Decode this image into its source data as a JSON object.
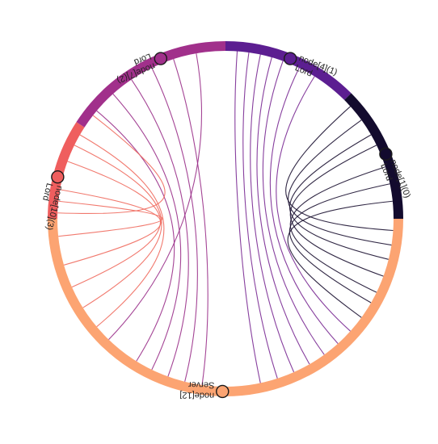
{
  "diagram": {
    "type": "circular-hierarchical-edge-bundling",
    "segments": [
      {
        "id": "violet",
        "start_angle": 90,
        "end_angle": 45,
        "color": "#5c1e91"
      },
      {
        "id": "dark",
        "start_angle": 45,
        "end_angle": 0,
        "color": "#130b2e"
      },
      {
        "id": "peach",
        "start_angle": 0,
        "end_angle": -180,
        "color": "#fca472"
      },
      {
        "id": "coral",
        "start_angle": 180,
        "end_angle": 147,
        "color": "#ef5e5e"
      },
      {
        "id": "magenta",
        "start_angle": 147,
        "end_angle": 90,
        "color": "#a1308b"
      }
    ],
    "nodes": [
      {
        "id": "n41",
        "angle": 68,
        "fill": "#5c1e91",
        "lines": [
          "node[4](1)",
          "Lord"
        ],
        "label_side": "outer-cw"
      },
      {
        "id": "n10",
        "angle": 22,
        "fill": "#130b2e",
        "lines": [
          "node[1](0)",
          "Lord"
        ],
        "label_side": "inner-cw"
      },
      {
        "id": "n12",
        "angle": -91,
        "fill": "#fca472",
        "lines": [
          "node[12]",
          "Server"
        ],
        "label_side": "outer-cw"
      },
      {
        "id": "n103",
        "angle": 166,
        "fill": "#ef5e5e",
        "lines": [
          "node[10](3)",
          "Lord"
        ],
        "label_side": "outer-ccw"
      },
      {
        "id": "n72",
        "angle": 112,
        "fill": "#a1308b",
        "lines": [
          "node[7](2)",
          "Lord"
        ],
        "label_side": "inner-ccw"
      }
    ],
    "edges": [
      {
        "a": 86,
        "b": -78,
        "color": "#7a2a94"
      },
      {
        "a": 82,
        "b": -72,
        "color": "#7a2a94"
      },
      {
        "a": 78,
        "b": -66,
        "color": "#7a2a94"
      },
      {
        "a": 74,
        "b": -60,
        "color": "#7a2a94"
      },
      {
        "a": 70,
        "b": -54,
        "color": "#7a2a94"
      },
      {
        "a": 64,
        "b": -48,
        "color": "#7a2a94"
      },
      {
        "a": 58,
        "b": -42,
        "color": "#7a2a94"
      },
      {
        "a": 140,
        "b": -122,
        "color": "#9a308a"
      },
      {
        "a": 132,
        "b": -116,
        "color": "#9a308a"
      },
      {
        "a": 124,
        "b": -110,
        "color": "#9a308a"
      },
      {
        "a": 116,
        "b": -104,
        "color": "#9a308a"
      },
      {
        "a": 108,
        "b": -98,
        "color": "#9a308a"
      },
      {
        "a": 100,
        "b": -134,
        "color": "#9a308a"
      },
      {
        "a": 42,
        "b": -4,
        "color": "#1a1030"
      },
      {
        "a": 36,
        "b": -9,
        "color": "#1a1030"
      },
      {
        "a": 30,
        "b": -14,
        "color": "#1a1030"
      },
      {
        "a": 26,
        "b": -20,
        "color": "#1a1030"
      },
      {
        "a": 18,
        "b": -26,
        "color": "#1a1030"
      },
      {
        "a": 12,
        "b": -30,
        "color": "#1a1030"
      },
      {
        "a": 6,
        "b": -36,
        "color": "#1a1030"
      },
      {
        "a": 178,
        "b": 142,
        "color": "#f06a5e"
      },
      {
        "a": 174,
        "b": 186,
        "color": "#f06a5e"
      },
      {
        "a": 170,
        "b": 196,
        "color": "#f06a5e"
      },
      {
        "a": 160,
        "b": 204,
        "color": "#f06a5e"
      },
      {
        "a": 154,
        "b": 212,
        "color": "#f06a5e"
      },
      {
        "a": 150,
        "b": 220,
        "color": "#f06a5e"
      }
    ]
  }
}
